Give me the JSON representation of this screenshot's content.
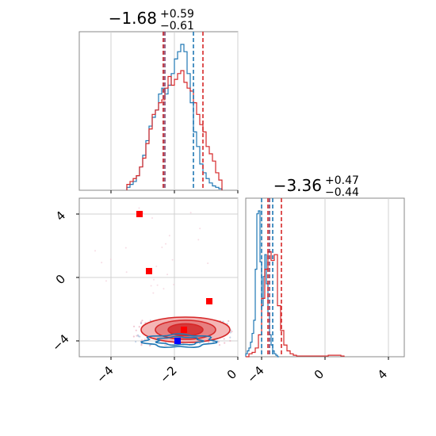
{
  "chart_data": {
    "type": "corner",
    "panels": {
      "hist_x": {
        "type": "histogram",
        "title_main": "−1.68",
        "title_sup": "+0.59",
        "title_sub": "−0.61",
        "xlim": [
          -5,
          0
        ],
        "grid": true,
        "xticks": [
          -4,
          -2,
          0
        ],
        "series": [
          {
            "color": "#1f77b4",
            "bins": [
              -3.5,
              -3.4,
              -3.3,
              -3.2,
              -3.1,
              -3.0,
              -2.9,
              -2.8,
              -2.7,
              -2.6,
              -2.5,
              -2.4,
              -2.3,
              -2.2,
              -2.1,
              -2.0,
              -1.9,
              -1.8,
              -1.7,
              -1.6,
              -1.5,
              -1.4,
              -1.3,
              -1.2,
              -1.1,
              -1.0,
              -0.9,
              -0.8,
              -0.7,
              -0.6,
              -0.5
            ],
            "counts": [
              0.02,
              0.04,
              0.06,
              0.1,
              0.16,
              0.24,
              0.34,
              0.44,
              0.5,
              0.55,
              0.66,
              0.7,
              0.66,
              0.72,
              0.8,
              0.9,
              0.95,
              1.0,
              0.95,
              0.8,
              0.6,
              0.4,
              0.3,
              0.18,
              0.12,
              0.08,
              0.05,
              0.03,
              0.02,
              0.01
            ]
          },
          {
            "color": "#d62728",
            "bins": [
              -3.5,
              -3.4,
              -3.3,
              -3.2,
              -3.1,
              -3.0,
              -2.9,
              -2.8,
              -2.7,
              -2.6,
              -2.5,
              -2.4,
              -2.3,
              -2.2,
              -2.1,
              -2.0,
              -1.9,
              -1.8,
              -1.7,
              -1.6,
              -1.5,
              -1.4,
              -1.3,
              -1.2,
              -1.1,
              -1.0,
              -0.9,
              -0.8,
              -0.7,
              -0.6,
              -0.5
            ],
            "counts": [
              0.04,
              0.06,
              0.08,
              0.1,
              0.16,
              0.22,
              0.32,
              0.42,
              0.52,
              0.55,
              0.6,
              0.62,
              0.7,
              0.78,
              0.72,
              0.76,
              0.8,
              0.82,
              0.74,
              0.7,
              0.68,
              0.6,
              0.52,
              0.45,
              0.4,
              0.3,
              0.25,
              0.2,
              0.12,
              0.07
            ]
          }
        ],
        "quantile_lines": [
          {
            "color": "#1f77b4",
            "values": [
              -2.35,
              -1.4
            ]
          },
          {
            "color": "#d62728",
            "values": [
              -2.35,
              -1.1
            ]
          },
          {
            "color": "#7f3f6e",
            "values": [
              -2.3
            ]
          }
        ]
      },
      "scatter_xy": {
        "type": "scatter-contour",
        "xlim": [
          -5,
          0
        ],
        "ylim": [
          -5,
          5
        ],
        "xticks": [
          -4,
          -2,
          0
        ],
        "yticks": [
          -4,
          0,
          4
        ],
        "grid": true,
        "red_markers": [
          {
            "x": -3.1,
            "y": 4.0
          },
          {
            "x": -2.8,
            "y": 0.4
          },
          {
            "x": -0.9,
            "y": -1.5
          },
          {
            "x": -1.7,
            "y": -3.3
          }
        ],
        "blue_markers": [
          {
            "x": -1.9,
            "y": -4.0
          }
        ],
        "red_contours": [
          {
            "cx": -1.65,
            "cy": -3.3,
            "rx": 1.4,
            "ry": 0.8,
            "fill": "#f4b5b5"
          },
          {
            "cx": -1.65,
            "cy": -3.3,
            "rx": 0.95,
            "ry": 0.6,
            "fill": "#e77f80"
          },
          {
            "cx": -1.65,
            "cy": -3.3,
            "rx": 0.55,
            "ry": 0.38,
            "fill": "#d6393a"
          }
        ],
        "blue_contours": [
          {
            "cx": -1.85,
            "cy": -4.0,
            "rx": 1.1,
            "ry": 0.4
          },
          {
            "cx": -1.85,
            "cy": -4.0,
            "rx": 0.7,
            "ry": 0.25
          }
        ]
      },
      "hist_y": {
        "type": "histogram",
        "title_main": "−3.36",
        "title_sup": "+0.47",
        "title_sub": "−0.44",
        "xlim": [
          -5,
          5
        ],
        "grid": true,
        "xticks": [
          -4,
          0,
          4
        ],
        "series": [
          {
            "color": "#1f77b4",
            "bins": [
              -5.0,
              -4.9,
              -4.8,
              -4.7,
              -4.6,
              -4.5,
              -4.4,
              -4.3,
              -4.2,
              -4.1,
              -4.0,
              -3.9,
              -3.8,
              -3.7,
              -3.6,
              -3.5,
              -3.4,
              -3.3,
              -3.2,
              -3.1,
              -3.0,
              -2.9
            ],
            "counts": [
              0.02,
              0.04,
              0.06,
              0.1,
              0.16,
              0.25,
              0.6,
              0.98,
              1.0,
              0.65,
              0.35,
              0.55,
              0.7,
              0.5,
              0.3,
              0.15,
              0.08,
              0.04,
              0.02,
              0.01,
              0.0
            ]
          },
          {
            "color": "#d62728",
            "bins": [
              -5.0,
              -4.8,
              -4.6,
              -4.4,
              -4.2,
              -4.0,
              -3.8,
              -3.6,
              -3.4,
              -3.2,
              -3.0,
              -2.8,
              -2.6,
              -2.4,
              -2.2,
              -2.0,
              -1.8,
              -1.6,
              -1.4,
              -1.2,
              -1.0,
              -0.8,
              -0.6,
              -0.4,
              -0.2,
              0.0,
              0.2,
              0.4,
              0.6,
              0.8,
              1.0,
              1.2
            ],
            "counts": [
              0.0,
              0.02,
              0.03,
              0.06,
              0.15,
              0.4,
              0.6,
              0.72,
              0.66,
              0.7,
              0.35,
              0.18,
              0.08,
              0.04,
              0.02,
              0.01,
              0.005,
              0.005,
              0.005,
              0.005,
              0.005,
              0.005,
              0.005,
              0.005,
              0.005,
              0.005,
              0.01,
              0.01,
              0.01,
              0.01,
              0.005
            ]
          }
        ],
        "quantile_lines": [
          {
            "color": "#1f77b4",
            "values": [
              -4.0,
              -3.3
            ]
          },
          {
            "color": "#d62728",
            "values": [
              -3.6,
              -2.75
            ]
          },
          {
            "color": "#7f3f6e",
            "values": [
              -3.5
            ]
          }
        ]
      }
    }
  },
  "labels": {
    "title_x_main": "−1.68",
    "title_x_sup": "+0.59",
    "title_x_sub": "−0.61",
    "title_y_main": "−3.36",
    "title_y_sup": "+0.47",
    "title_y_sub": "−0.44"
  }
}
